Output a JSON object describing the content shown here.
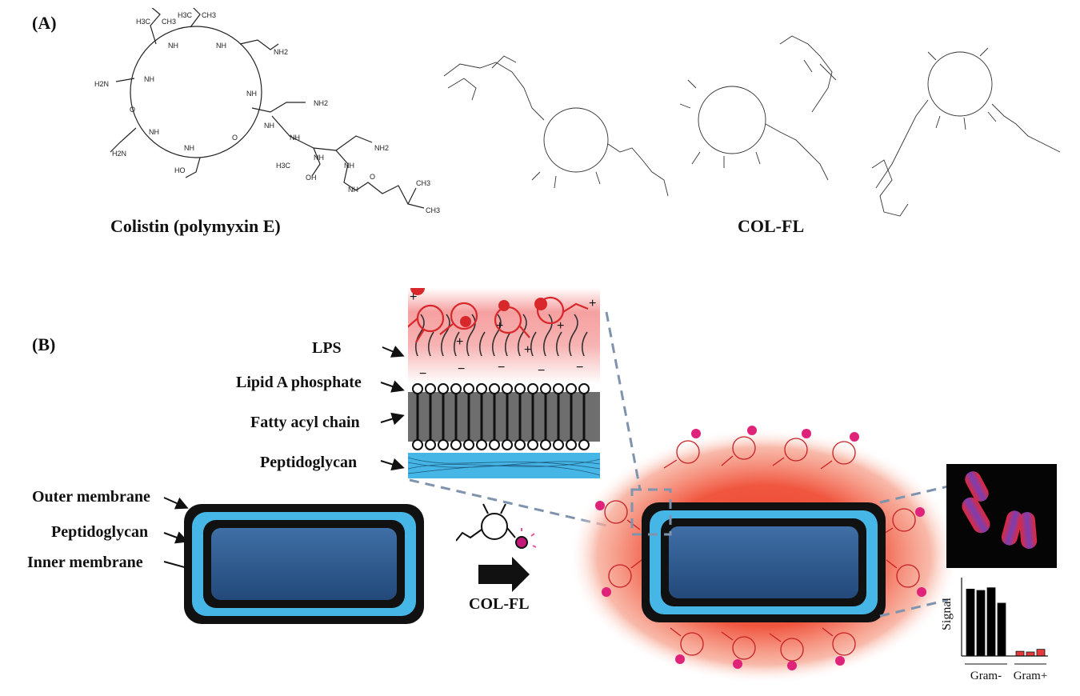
{
  "panels": {
    "a": "(A)",
    "b": "(B)"
  },
  "structures": {
    "colistin": {
      "name": "Colistin (polymyxin E)",
      "atoms": [
        "H3C",
        "CH3",
        "H3C",
        "CH3",
        "NH",
        "NH",
        "NH2",
        "H2N",
        "NH",
        "O",
        "NH",
        "NH2",
        "NH",
        "O",
        "NH",
        "NH",
        "H2N",
        "NH",
        "NH",
        "HO",
        "H3C",
        "NH",
        "NH2",
        "OH",
        "NH",
        "O",
        "CH3",
        "CH3"
      ]
    },
    "col_fl": {
      "name": "COL-FL"
    }
  },
  "membrane_labels": {
    "lps": "LPS",
    "lipid_a": "Lipid A phosphate",
    "fatty_acyl": "Fatty acyl chain",
    "peptidoglycan": "Peptidoglycan"
  },
  "cell_labels": {
    "outer": "Outer membrane",
    "peptidoglycan": "Peptidoglycan",
    "inner": "Inner membrane"
  },
  "arrow_label": "COL-FL",
  "charges": {
    "plus": "+",
    "minus": "−"
  },
  "colors": {
    "probe_red": "#d9282b",
    "peptidoglycan_blue": "#45b6e6",
    "cytoplasm_blue": "#2f5b8f",
    "membrane_black": "#111111"
  },
  "chart_data": {
    "type": "bar",
    "ylabel": "Signal",
    "categories": [
      "Gram-",
      "Gram-",
      "Gram-",
      "Gram-",
      "Gram+",
      "Gram+",
      "Gram+"
    ],
    "values": [
      10,
      9.8,
      10.2,
      7.9,
      0.7,
      0.6,
      1.0
    ],
    "bar_colors": [
      "#000000",
      "#000000",
      "#000000",
      "#000000",
      "#e53a3a",
      "#e53a3a",
      "#e53a3a"
    ],
    "groups": [
      {
        "label": "Gram-"
      },
      {
        "label": "Gram+"
      }
    ],
    "ylim": [
      0,
      11
    ]
  }
}
